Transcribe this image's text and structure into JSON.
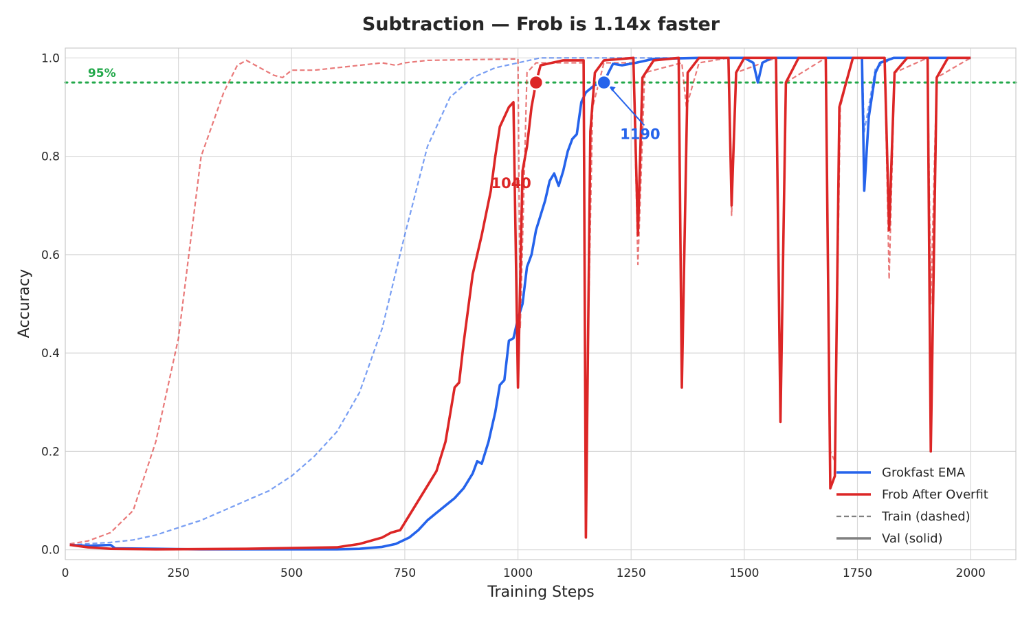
{
  "chart_data": {
    "type": "line",
    "title": "Subtraction — Frob is 1.14x faster",
    "xlabel": "Training Steps",
    "ylabel": "Accuracy",
    "xlim": [
      0,
      2100
    ],
    "ylim": [
      -0.02,
      1.02
    ],
    "xticks": [
      0,
      250,
      500,
      750,
      1000,
      1250,
      1500,
      1750,
      2000
    ],
    "yticks": [
      0.0,
      0.2,
      0.4,
      0.6,
      0.8,
      1.0
    ],
    "grid": true,
    "threshold": {
      "y": 0.95,
      "label": "95%",
      "color": "#22a84a"
    },
    "series": [
      {
        "name": "Grokfast EMA",
        "color": "#2563eb",
        "val": [
          [
            10,
            0.01
          ],
          [
            50,
            0.008
          ],
          [
            100,
            0.01
          ],
          [
            110,
            0.003
          ],
          [
            200,
            0.002
          ],
          [
            300,
            0.001
          ],
          [
            400,
            0.001
          ],
          [
            500,
            0.001
          ],
          [
            600,
            0.001
          ],
          [
            650,
            0.002
          ],
          [
            700,
            0.006
          ],
          [
            730,
            0.012
          ],
          [
            760,
            0.025
          ],
          [
            780,
            0.04
          ],
          [
            800,
            0.06
          ],
          [
            820,
            0.075
          ],
          [
            840,
            0.09
          ],
          [
            860,
            0.105
          ],
          [
            880,
            0.125
          ],
          [
            900,
            0.155
          ],
          [
            910,
            0.18
          ],
          [
            920,
            0.175
          ],
          [
            935,
            0.22
          ],
          [
            950,
            0.28
          ],
          [
            960,
            0.335
          ],
          [
            970,
            0.345
          ],
          [
            980,
            0.425
          ],
          [
            990,
            0.43
          ],
          [
            1000,
            0.47
          ],
          [
            1010,
            0.5
          ],
          [
            1020,
            0.575
          ],
          [
            1030,
            0.6
          ],
          [
            1040,
            0.65
          ],
          [
            1050,
            0.68
          ],
          [
            1060,
            0.71
          ],
          [
            1070,
            0.75
          ],
          [
            1080,
            0.765
          ],
          [
            1090,
            0.74
          ],
          [
            1100,
            0.77
          ],
          [
            1110,
            0.81
          ],
          [
            1120,
            0.835
          ],
          [
            1130,
            0.845
          ],
          [
            1140,
            0.91
          ],
          [
            1150,
            0.93
          ],
          [
            1170,
            0.945
          ],
          [
            1190,
            0.95
          ],
          [
            1200,
            0.97
          ],
          [
            1210,
            0.988
          ],
          [
            1230,
            0.985
          ],
          [
            1260,
            0.99
          ],
          [
            1300,
            0.998
          ],
          [
            1400,
            1.0
          ],
          [
            1500,
            1.0
          ],
          [
            1520,
            0.99
          ],
          [
            1530,
            0.95
          ],
          [
            1540,
            0.99
          ],
          [
            1560,
            1.0
          ],
          [
            1760,
            1.0
          ],
          [
            1765,
            0.73
          ],
          [
            1775,
            0.88
          ],
          [
            1790,
            0.97
          ],
          [
            1800,
            0.99
          ],
          [
            1830,
            1.0
          ],
          [
            2000,
            1.0
          ]
        ],
        "train": [
          [
            10,
            0.01
          ],
          [
            100,
            0.015
          ],
          [
            150,
            0.02
          ],
          [
            200,
            0.03
          ],
          [
            250,
            0.045
          ],
          [
            300,
            0.06
          ],
          [
            350,
            0.08
          ],
          [
            400,
            0.1
          ],
          [
            450,
            0.12
          ],
          [
            500,
            0.15
          ],
          [
            550,
            0.19
          ],
          [
            600,
            0.24
          ],
          [
            650,
            0.32
          ],
          [
            700,
            0.45
          ],
          [
            750,
            0.64
          ],
          [
            800,
            0.82
          ],
          [
            850,
            0.92
          ],
          [
            900,
            0.96
          ],
          [
            950,
            0.98
          ],
          [
            1000,
            0.99
          ],
          [
            1050,
            1.0
          ],
          [
            1760,
            1.0
          ],
          [
            1765,
            0.85
          ],
          [
            1790,
            0.98
          ],
          [
            1830,
            1.0
          ],
          [
            2000,
            1.0
          ]
        ]
      },
      {
        "name": "Frob After Overfit",
        "color": "#dc2626",
        "val": [
          [
            10,
            0.01
          ],
          [
            50,
            0.005
          ],
          [
            100,
            0.002
          ],
          [
            200,
            0.001
          ],
          [
            400,
            0.002
          ],
          [
            600,
            0.005
          ],
          [
            650,
            0.012
          ],
          [
            700,
            0.025
          ],
          [
            720,
            0.035
          ],
          [
            740,
            0.04
          ],
          [
            760,
            0.07
          ],
          [
            780,
            0.1
          ],
          [
            800,
            0.13
          ],
          [
            820,
            0.16
          ],
          [
            840,
            0.22
          ],
          [
            860,
            0.33
          ],
          [
            870,
            0.34
          ],
          [
            880,
            0.42
          ],
          [
            900,
            0.56
          ],
          [
            920,
            0.64
          ],
          [
            940,
            0.73
          ],
          [
            950,
            0.8
          ],
          [
            960,
            0.86
          ],
          [
            980,
            0.9
          ],
          [
            990,
            0.91
          ],
          [
            1000,
            0.33
          ],
          [
            1010,
            0.77
          ],
          [
            1020,
            0.82
          ],
          [
            1030,
            0.9
          ],
          [
            1040,
            0.95
          ],
          [
            1050,
            0.985
          ],
          [
            1100,
            0.995
          ],
          [
            1145,
            0.995
          ],
          [
            1150,
            0.025
          ],
          [
            1160,
            0.85
          ],
          [
            1170,
            0.97
          ],
          [
            1190,
            0.995
          ],
          [
            1255,
            1.0
          ],
          [
            1265,
            0.64
          ],
          [
            1275,
            0.96
          ],
          [
            1300,
            0.995
          ],
          [
            1355,
            1.0
          ],
          [
            1362,
            0.33
          ],
          [
            1375,
            0.97
          ],
          [
            1400,
            1.0
          ],
          [
            1465,
            1.0
          ],
          [
            1472,
            0.7
          ],
          [
            1482,
            0.97
          ],
          [
            1500,
            1.0
          ],
          [
            1570,
            1.0
          ],
          [
            1580,
            0.26
          ],
          [
            1592,
            0.95
          ],
          [
            1620,
            1.0
          ],
          [
            1680,
            1.0
          ],
          [
            1690,
            0.125
          ],
          [
            1700,
            0.15
          ],
          [
            1710,
            0.9
          ],
          [
            1740,
            1.0
          ],
          [
            1810,
            1.0
          ],
          [
            1820,
            0.65
          ],
          [
            1832,
            0.97
          ],
          [
            1860,
            1.0
          ],
          [
            1905,
            1.0
          ],
          [
            1912,
            0.2
          ],
          [
            1925,
            0.96
          ],
          [
            1950,
            1.0
          ],
          [
            2000,
            1.0
          ]
        ],
        "train": [
          [
            10,
            0.012
          ],
          [
            50,
            0.018
          ],
          [
            100,
            0.035
          ],
          [
            150,
            0.08
          ],
          [
            200,
            0.22
          ],
          [
            250,
            0.43
          ],
          [
            300,
            0.8
          ],
          [
            350,
            0.93
          ],
          [
            380,
            0.985
          ],
          [
            400,
            0.995
          ],
          [
            430,
            0.98
          ],
          [
            460,
            0.965
          ],
          [
            480,
            0.96
          ],
          [
            500,
            0.975
          ],
          [
            550,
            0.975
          ],
          [
            600,
            0.98
          ],
          [
            700,
            0.99
          ],
          [
            730,
            0.985
          ],
          [
            750,
            0.99
          ],
          [
            800,
            0.995
          ],
          [
            1000,
            0.998
          ],
          [
            1005,
            0.45
          ],
          [
            1020,
            0.97
          ],
          [
            1040,
            0.99
          ],
          [
            1145,
            0.99
          ],
          [
            1150,
            0.2
          ],
          [
            1165,
            0.9
          ],
          [
            1190,
            0.99
          ],
          [
            1255,
            0.99
          ],
          [
            1265,
            0.58
          ],
          [
            1280,
            0.97
          ],
          [
            1362,
            0.99
          ],
          [
            1372,
            0.9
          ],
          [
            1400,
            0.99
          ],
          [
            1465,
            1.0
          ],
          [
            1472,
            0.68
          ],
          [
            1482,
            0.97
          ],
          [
            1570,
            1.0
          ],
          [
            1580,
            0.3
          ],
          [
            1592,
            0.95
          ],
          [
            1680,
            1.0
          ],
          [
            1690,
            0.2
          ],
          [
            1700,
            0.18
          ],
          [
            1712,
            0.9
          ],
          [
            1740,
            1.0
          ],
          [
            1810,
            1.0
          ],
          [
            1820,
            0.55
          ],
          [
            1832,
            0.97
          ],
          [
            1905,
            1.0
          ],
          [
            1912,
            0.5
          ],
          [
            1925,
            0.96
          ],
          [
            2000,
            1.0
          ]
        ]
      }
    ],
    "annotations": [
      {
        "series": "Frob After Overfit",
        "x": 1040,
        "y": 0.95,
        "label": "1040",
        "color": "#dc2626",
        "label_x": 985,
        "label_y": 0.735
      },
      {
        "series": "Grokfast EMA",
        "x": 1190,
        "y": 0.95,
        "label": "1190",
        "color": "#2563eb",
        "label_x": 1270,
        "label_y": 0.835
      }
    ],
    "legend": {
      "position": "bottom-right",
      "entries": [
        {
          "label": "Grokfast EMA",
          "color": "#2563eb",
          "style": "solid"
        },
        {
          "label": "Frob After Overfit",
          "color": "#dc2626",
          "style": "solid"
        },
        {
          "label": "Train (dashed)",
          "color": "#808080",
          "style": "dashed"
        },
        {
          "label": "Val (solid)",
          "color": "#808080",
          "style": "solid"
        }
      ]
    }
  }
}
